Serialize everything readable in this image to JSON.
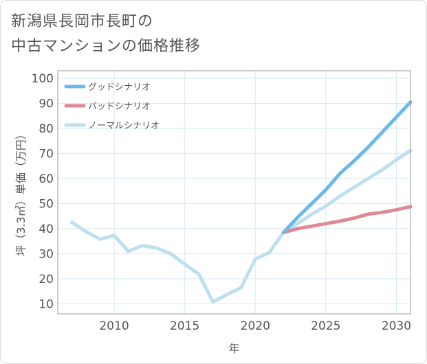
{
  "title_line1": "新潟県長岡市長町の",
  "title_line2": "中古マンションの価格推移",
  "colors": {
    "good": "#6cb8e9",
    "bad": "#de8a92",
    "normal": "#bde0ef",
    "grid": "#d5e9f3",
    "frame": "#9a9a9a"
  },
  "chart_data": {
    "type": "line",
    "xlabel": "年",
    "ylabel": "坪（3.3㎡）単価（万円）",
    "xlim": [
      2006,
      2031
    ],
    "ylim": [
      6,
      103
    ],
    "xticks": [
      2010,
      2015,
      2020,
      2025,
      2030
    ],
    "yticks": [
      10,
      20,
      30,
      40,
      50,
      60,
      70,
      80,
      90,
      100
    ],
    "grid": true,
    "legend_position": "top-left",
    "series": [
      {
        "name": "グッドシナリオ",
        "color_key": "good",
        "x": [
          2022,
          2023,
          2024,
          2025,
          2026,
          2027,
          2028,
          2029,
          2030,
          2031
        ],
        "y": [
          38.5,
          44.5,
          50.0,
          55.5,
          62.0,
          67.0,
          72.5,
          78.5,
          84.5,
          90.5
        ]
      },
      {
        "name": "バッドシナリオ",
        "color_key": "bad",
        "x": [
          2022,
          2023,
          2024,
          2025,
          2026,
          2027,
          2028,
          2029,
          2030,
          2031
        ],
        "y": [
          38.5,
          40.0,
          41.0,
          42.0,
          43.0,
          44.2,
          45.8,
          46.5,
          47.5,
          48.8
        ]
      },
      {
        "name": "ノーマルシナリオ",
        "color_key": "normal",
        "x": [
          2007,
          2008,
          2009,
          2010,
          2011,
          2012,
          2013,
          2014,
          2015,
          2016,
          2017,
          2018,
          2019,
          2020,
          2021,
          2022,
          2023,
          2024,
          2025,
          2026,
          2027,
          2028,
          2029,
          2030,
          2031
        ],
        "y": [
          42.5,
          38.8,
          35.8,
          37.3,
          31.0,
          33.2,
          32.3,
          30.0,
          25.8,
          21.8,
          10.8,
          13.7,
          16.5,
          27.9,
          30.5,
          38.5,
          42.0,
          45.8,
          49.0,
          53.0,
          56.5,
          60.0,
          63.5,
          67.5,
          71.2
        ]
      }
    ]
  }
}
